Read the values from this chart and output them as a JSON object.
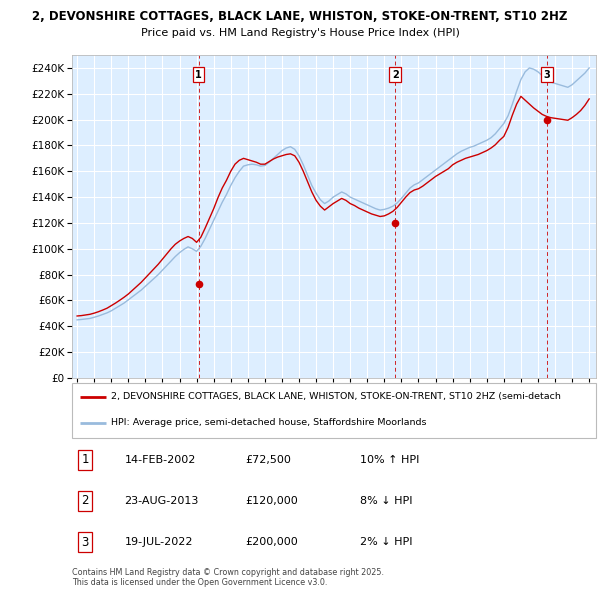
{
  "title1": "2, DEVONSHIRE COTTAGES, BLACK LANE, WHISTON, STOKE-ON-TRENT, ST10 2HZ",
  "title2": "Price paid vs. HM Land Registry's House Price Index (HPI)",
  "bg_color": "#ffffff",
  "plot_bg_color": "#ddeeff",
  "grid_color": "#ffffff",
  "line1_color": "#cc0000",
  "line2_color": "#99bbdd",
  "sale_marker_color": "#cc0000",
  "sale_vline_color": "#cc0000",
  "legend1_label": "2, DEVONSHIRE COTTAGES, BLACK LANE, WHISTON, STOKE-ON-TRENT, ST10 2HZ (semi-detach",
  "legend2_label": "HPI: Average price, semi-detached house, Staffordshire Moorlands",
  "sales": [
    {
      "num": 1,
      "date": "14-FEB-2002",
      "price": 72500,
      "pct": "10%",
      "dir": "↑"
    },
    {
      "num": 2,
      "date": "23-AUG-2013",
      "price": 120000,
      "pct": "8%",
      "dir": "↓"
    },
    {
      "num": 3,
      "date": "19-JUL-2022",
      "price": 200000,
      "pct": "2%",
      "dir": "↓"
    }
  ],
  "sale_years": [
    2002.12,
    2013.64,
    2022.54
  ],
  "sale_prices": [
    72500,
    120000,
    200000
  ],
  "copyright": "Contains HM Land Registry data © Crown copyright and database right 2025.\nThis data is licensed under the Open Government Licence v3.0.",
  "ylim": [
    0,
    250000
  ],
  "yticks": [
    0,
    20000,
    40000,
    60000,
    80000,
    100000,
    120000,
    140000,
    160000,
    180000,
    200000,
    220000,
    240000
  ],
  "hpi_years": [
    1995.0,
    1995.25,
    1995.5,
    1995.75,
    1996.0,
    1996.25,
    1996.5,
    1996.75,
    1997.0,
    1997.25,
    1997.5,
    1997.75,
    1998.0,
    1998.25,
    1998.5,
    1998.75,
    1999.0,
    1999.25,
    1999.5,
    1999.75,
    2000.0,
    2000.25,
    2000.5,
    2000.75,
    2001.0,
    2001.25,
    2001.5,
    2001.75,
    2002.0,
    2002.25,
    2002.5,
    2002.75,
    2003.0,
    2003.25,
    2003.5,
    2003.75,
    2004.0,
    2004.25,
    2004.5,
    2004.75,
    2005.0,
    2005.25,
    2005.5,
    2005.75,
    2006.0,
    2006.25,
    2006.5,
    2006.75,
    2007.0,
    2007.25,
    2007.5,
    2007.75,
    2008.0,
    2008.25,
    2008.5,
    2008.75,
    2009.0,
    2009.25,
    2009.5,
    2009.75,
    2010.0,
    2010.25,
    2010.5,
    2010.75,
    2011.0,
    2011.25,
    2011.5,
    2011.75,
    2012.0,
    2012.25,
    2012.5,
    2012.75,
    2013.0,
    2013.25,
    2013.5,
    2013.75,
    2014.0,
    2014.25,
    2014.5,
    2014.75,
    2015.0,
    2015.25,
    2015.5,
    2015.75,
    2016.0,
    2016.25,
    2016.5,
    2016.75,
    2017.0,
    2017.25,
    2017.5,
    2017.75,
    2018.0,
    2018.25,
    2018.5,
    2018.75,
    2019.0,
    2019.25,
    2019.5,
    2019.75,
    2020.0,
    2020.25,
    2020.5,
    2020.75,
    2021.0,
    2021.25,
    2021.5,
    2021.75,
    2022.0,
    2022.25,
    2022.5,
    2022.75,
    2023.0,
    2023.25,
    2023.5,
    2023.75,
    2024.0,
    2024.25,
    2024.5,
    2024.75,
    2025.0
  ],
  "hpi_values": [
    45000,
    45300,
    45700,
    46100,
    47000,
    48000,
    49200,
    50400,
    52000,
    54000,
    56000,
    58000,
    60500,
    63000,
    65500,
    68000,
    71000,
    74000,
    77000,
    80000,
    83500,
    87000,
    90500,
    94000,
    97000,
    99500,
    101500,
    100000,
    98000,
    102000,
    108000,
    115000,
    122000,
    129000,
    136000,
    142000,
    149000,
    155000,
    160000,
    164000,
    165000,
    165500,
    165000,
    164000,
    164500,
    167000,
    170000,
    173000,
    176000,
    178000,
    179000,
    177000,
    172000,
    165000,
    157000,
    149000,
    143000,
    138000,
    135000,
    137000,
    140000,
    142000,
    144000,
    142500,
    140000,
    138500,
    137000,
    135500,
    134000,
    132500,
    131000,
    130000,
    130500,
    131500,
    133000,
    135500,
    139000,
    143000,
    147000,
    149500,
    151000,
    153500,
    156000,
    158500,
    161000,
    163500,
    166000,
    168500,
    171000,
    173500,
    175500,
    177000,
    178500,
    179500,
    181000,
    182500,
    184000,
    186000,
    189000,
    193000,
    197000,
    203000,
    212000,
    222000,
    231000,
    237000,
    240000,
    239000,
    237000,
    234000,
    231000,
    229000,
    228000,
    227000,
    226000,
    225000,
    227000,
    230000,
    233000,
    236000,
    240000
  ],
  "prop_years": [
    1995.0,
    1995.25,
    1995.5,
    1995.75,
    1996.0,
    1996.25,
    1996.5,
    1996.75,
    1997.0,
    1997.25,
    1997.5,
    1997.75,
    1998.0,
    1998.25,
    1998.5,
    1998.75,
    1999.0,
    1999.25,
    1999.5,
    1999.75,
    2000.0,
    2000.25,
    2000.5,
    2000.75,
    2001.0,
    2001.25,
    2001.5,
    2001.75,
    2002.0,
    2002.25,
    2002.5,
    2002.75,
    2003.0,
    2003.25,
    2003.5,
    2003.75,
    2004.0,
    2004.25,
    2004.5,
    2004.75,
    2005.0,
    2005.25,
    2005.5,
    2005.75,
    2006.0,
    2006.25,
    2006.5,
    2006.75,
    2007.0,
    2007.25,
    2007.5,
    2007.75,
    2008.0,
    2008.25,
    2008.5,
    2008.75,
    2009.0,
    2009.25,
    2009.5,
    2009.75,
    2010.0,
    2010.25,
    2010.5,
    2010.75,
    2011.0,
    2011.25,
    2011.5,
    2011.75,
    2012.0,
    2012.25,
    2012.5,
    2012.75,
    2013.0,
    2013.25,
    2013.5,
    2013.75,
    2014.0,
    2014.25,
    2014.5,
    2014.75,
    2015.0,
    2015.25,
    2015.5,
    2015.75,
    2016.0,
    2016.25,
    2016.5,
    2016.75,
    2017.0,
    2017.25,
    2017.5,
    2017.75,
    2018.0,
    2018.25,
    2018.5,
    2018.75,
    2019.0,
    2019.25,
    2019.5,
    2019.75,
    2020.0,
    2020.25,
    2020.5,
    2020.75,
    2021.0,
    2021.25,
    2021.5,
    2021.75,
    2022.0,
    2022.25,
    2022.5,
    2022.75,
    2023.0,
    2023.25,
    2023.5,
    2023.75,
    2024.0,
    2024.25,
    2024.5,
    2024.75,
    2025.0
  ],
  "prop_values": [
    48000,
    48300,
    48800,
    49300,
    50200,
    51300,
    52600,
    54000,
    56000,
    58000,
    60200,
    62500,
    65000,
    68000,
    71000,
    74000,
    77500,
    81000,
    84500,
    88000,
    92000,
    96000,
    100000,
    103500,
    106000,
    108000,
    109500,
    108000,
    105000,
    109000,
    116000,
    123500,
    131000,
    139500,
    147000,
    153000,
    160000,
    165500,
    168500,
    170000,
    169000,
    168000,
    167000,
    165500,
    165500,
    167500,
    169500,
    171000,
    172000,
    173000,
    173500,
    172000,
    167000,
    160000,
    152000,
    144000,
    137500,
    133000,
    130000,
    132500,
    135000,
    137000,
    139000,
    137500,
    135000,
    133500,
    131500,
    130000,
    128500,
    127000,
    126000,
    125000,
    125500,
    127000,
    129000,
    132000,
    136000,
    140000,
    143500,
    145500,
    146500,
    148500,
    151000,
    153500,
    156000,
    158000,
    160000,
    162000,
    165000,
    167000,
    168500,
    170000,
    171000,
    172000,
    173000,
    174500,
    176000,
    178000,
    180500,
    184000,
    187000,
    194000,
    203500,
    212000,
    218000,
    215000,
    212000,
    209000,
    206500,
    204000,
    202500,
    201500,
    201000,
    200500,
    200000,
    199500,
    201500,
    204000,
    207000,
    211000,
    216000
  ]
}
